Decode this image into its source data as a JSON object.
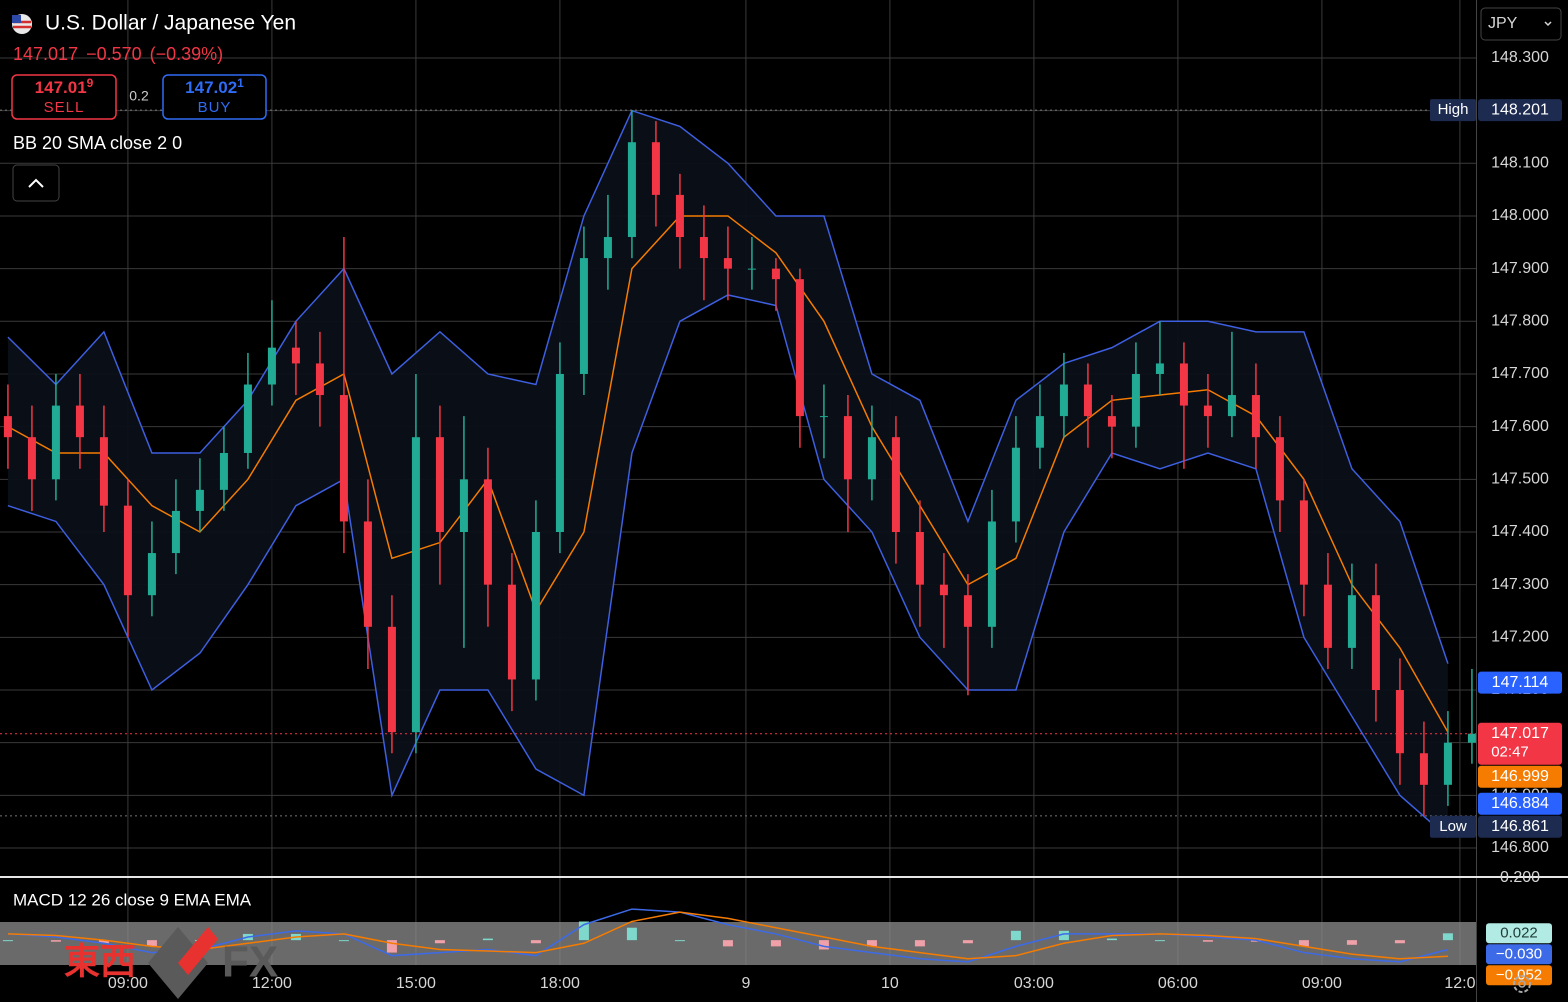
{
  "header": {
    "title": "U.S. Dollar / Japanese Yen",
    "last": "147.017",
    "change": "−0.570",
    "change_pct": "(−0.39%)",
    "sell": {
      "price": "147.01",
      "pip": "9",
      "label": "SELL"
    },
    "spread": "0.2",
    "buy": {
      "price": "147.02",
      "pip": "1",
      "label": "BUY"
    },
    "indicator": "BB 20 SMA close 2 0",
    "currency": "JPY"
  },
  "chart_data": [
    {
      "type": "candlestick",
      "xlim": [
        -0.33,
        61.17
      ],
      "xticks": [
        {
          "value": 5,
          "label": "09:00"
        },
        {
          "value": 11,
          "label": "12:00"
        },
        {
          "value": 17,
          "label": "15:00"
        },
        {
          "value": 23,
          "label": "18:00"
        },
        {
          "value": 30.75,
          "label": "9"
        },
        {
          "value": 36.75,
          "label": "10"
        },
        {
          "value": 42.75,
          "label": "03:00"
        },
        {
          "value": 48.75,
          "label": "06:00"
        },
        {
          "value": 54.75,
          "label": "09:00"
        },
        {
          "value": 60.5,
          "label": "12:0"
        }
      ],
      "ylim": [
        146.745,
        148.41
      ],
      "yticks": [
        {
          "value": 148.3,
          "label": "148.300"
        },
        {
          "value": 148.2,
          "label": "148.200"
        },
        {
          "value": 148.1,
          "label": "148.100"
        },
        {
          "value": 148.0,
          "label": "148.000"
        },
        {
          "value": 147.9,
          "label": "147.900"
        },
        {
          "value": 147.8,
          "label": "147.800"
        },
        {
          "value": 147.7,
          "label": "147.700"
        },
        {
          "value": 147.6,
          "label": "147.600"
        },
        {
          "value": 147.5,
          "label": "147.500"
        },
        {
          "value": 147.4,
          "label": "147.400"
        },
        {
          "value": 147.3,
          "label": "147.300"
        },
        {
          "value": 147.2,
          "label": "147.200"
        },
        {
          "value": 147.1,
          "label": "147.100"
        },
        {
          "value": 147.0,
          "label": "147.000"
        },
        {
          "value": 146.9,
          "label": "146.900"
        },
        {
          "value": 146.8,
          "label": "146.800"
        }
      ],
      "grid": true,
      "up_color": "#22ab94",
      "down_color": "#f23645",
      "open": [
        147.62,
        147.58,
        147.5,
        147.64,
        147.58,
        147.45,
        147.28,
        147.36,
        147.44,
        147.48,
        147.55,
        147.68,
        147.75,
        147.72,
        147.66,
        147.42,
        147.22,
        147.02,
        147.58,
        147.4,
        147.5,
        147.3,
        147.12,
        147.4,
        147.7,
        147.92,
        147.96,
        148.14,
        148.04,
        147.96,
        147.92,
        147.9,
        147.9,
        147.88,
        147.62,
        147.62,
        147.5,
        147.58,
        147.4,
        147.3,
        147.28,
        147.22,
        147.42,
        147.56,
        147.62,
        147.68,
        147.62,
        147.6,
        147.7,
        147.72,
        147.64,
        147.62,
        147.66,
        147.58,
        147.46,
        147.3,
        147.18,
        147.28,
        147.1,
        146.98,
        146.92,
        147.0
      ],
      "high": [
        147.68,
        147.64,
        147.7,
        147.7,
        147.64,
        147.5,
        147.42,
        147.5,
        147.54,
        147.6,
        147.74,
        147.84,
        147.8,
        147.78,
        147.96,
        147.5,
        147.28,
        147.7,
        147.64,
        147.62,
        147.56,
        147.36,
        147.46,
        147.76,
        147.98,
        148.04,
        148.201,
        148.18,
        148.08,
        148.02,
        147.98,
        147.96,
        147.92,
        147.9,
        147.68,
        147.66,
        147.64,
        147.62,
        147.46,
        147.36,
        147.32,
        147.48,
        147.62,
        147.68,
        147.74,
        147.72,
        147.66,
        147.76,
        147.8,
        147.76,
        147.7,
        147.78,
        147.72,
        147.62,
        147.5,
        147.36,
        147.34,
        147.34,
        147.16,
        147.04,
        147.06,
        147.14
      ],
      "low": [
        147.52,
        147.44,
        147.46,
        147.52,
        147.4,
        147.2,
        147.24,
        147.32,
        147.4,
        147.44,
        147.52,
        147.64,
        147.66,
        147.6,
        147.36,
        147.14,
        146.98,
        146.98,
        147.3,
        147.18,
        147.22,
        147.06,
        147.08,
        147.36,
        147.66,
        147.86,
        147.92,
        147.98,
        147.9,
        147.84,
        147.84,
        147.86,
        147.82,
        147.56,
        147.54,
        147.4,
        147.46,
        147.34,
        147.22,
        147.18,
        147.09,
        147.18,
        147.38,
        147.52,
        147.58,
        147.56,
        147.54,
        147.56,
        147.66,
        147.52,
        147.56,
        147.58,
        147.52,
        147.4,
        147.24,
        147.14,
        147.14,
        147.04,
        146.92,
        146.861,
        146.88,
        146.96
      ],
      "close": [
        147.58,
        147.5,
        147.64,
        147.58,
        147.45,
        147.28,
        147.36,
        147.44,
        147.48,
        147.55,
        147.68,
        147.75,
        147.72,
        147.66,
        147.42,
        147.22,
        147.02,
        147.58,
        147.4,
        147.5,
        147.3,
        147.12,
        147.4,
        147.7,
        147.92,
        147.96,
        148.14,
        148.04,
        147.96,
        147.92,
        147.9,
        147.9,
        147.88,
        147.62,
        147.62,
        147.5,
        147.58,
        147.4,
        147.3,
        147.28,
        147.22,
        147.42,
        147.56,
        147.62,
        147.68,
        147.62,
        147.6,
        147.7,
        147.72,
        147.64,
        147.62,
        147.66,
        147.58,
        147.46,
        147.3,
        147.18,
        147.28,
        147.1,
        146.98,
        146.92,
        147.0,
        147.017
      ],
      "bands": {
        "band_color": "#3d5fe0",
        "middle_color": "#f57c00",
        "fill": "#0b0f17",
        "x": [
          0,
          2,
          4,
          6,
          8,
          10,
          12,
          14,
          16,
          18,
          20,
          22,
          24,
          26,
          28,
          30,
          32,
          34,
          36,
          38,
          40,
          42,
          44,
          46,
          48,
          50,
          52,
          54,
          56,
          58,
          60
        ],
        "upper": [
          147.77,
          147.68,
          147.78,
          147.55,
          147.55,
          147.65,
          147.8,
          147.9,
          147.7,
          147.78,
          147.7,
          147.68,
          148.0,
          148.2,
          148.17,
          148.1,
          148.0,
          148.0,
          147.7,
          147.65,
          147.42,
          147.65,
          147.72,
          147.75,
          147.8,
          147.8,
          147.78,
          147.78,
          147.52,
          147.42,
          147.15
        ],
        "middle": [
          147.6,
          147.55,
          147.55,
          147.45,
          147.4,
          147.5,
          147.65,
          147.7,
          147.35,
          147.38,
          147.5,
          147.25,
          147.4,
          147.9,
          148.0,
          148.0,
          147.93,
          147.8,
          147.6,
          147.45,
          147.3,
          147.35,
          147.58,
          147.65,
          147.66,
          147.67,
          147.62,
          147.5,
          147.3,
          147.18,
          147.02
        ],
        "lower": [
          147.45,
          147.42,
          147.3,
          147.1,
          147.17,
          147.3,
          147.45,
          147.5,
          146.9,
          147.1,
          147.1,
          146.95,
          146.9,
          147.55,
          147.8,
          147.85,
          147.83,
          147.5,
          147.4,
          147.2,
          147.1,
          147.1,
          147.4,
          147.55,
          147.52,
          147.55,
          147.52,
          147.2,
          147.05,
          146.9,
          146.82
        ]
      },
      "markers": [
        {
          "label": "High",
          "value": 148.201,
          "value_label": "148.201",
          "color": "#1c2b4f",
          "dotted": "#777777"
        },
        {
          "value": 147.114,
          "value_label": "147.114",
          "color": "#2962ff"
        },
        {
          "value": 147.017,
          "value_label": "147.017",
          "countdown": "02:47",
          "color": "#f23645",
          "dotted": "#f23645"
        },
        {
          "value": 146.999,
          "value_label": "146.999",
          "color": "#f57c00"
        },
        {
          "value": 146.884,
          "value_label": "146.884",
          "color": "#2962ff"
        },
        {
          "label": "Low",
          "value": 146.861,
          "value_label": "146.861",
          "color": "#1c2b4f",
          "dotted": "#777777"
        }
      ]
    },
    {
      "type": "macd",
      "title": "MACD 12 26 close 9 EMA EMA",
      "ylim": [
        -0.08,
        0.2
      ],
      "yticks": [
        {
          "value": 0.2,
          "label": "0.200"
        }
      ],
      "x": [
        0,
        2,
        4,
        6,
        8,
        10,
        12,
        14,
        16,
        18,
        20,
        22,
        24,
        26,
        28,
        30,
        32,
        34,
        36,
        38,
        40,
        42,
        44,
        46,
        48,
        50,
        52,
        54,
        56,
        58,
        60
      ],
      "macd": [
        0.02,
        0.01,
        -0.01,
        -0.04,
        -0.03,
        0.01,
        0.03,
        0.02,
        -0.05,
        -0.04,
        -0.03,
        -0.05,
        0.05,
        0.1,
        0.09,
        0.05,
        0.02,
        -0.02,
        -0.04,
        -0.06,
        -0.07,
        -0.02,
        0.02,
        0.02,
        0.02,
        0.01,
        0.0,
        -0.04,
        -0.06,
        -0.07,
        -0.03
      ],
      "signal": [
        0.02,
        0.015,
        0.0,
        -0.02,
        -0.03,
        -0.01,
        0.01,
        0.02,
        -0.01,
        -0.03,
        -0.035,
        -0.04,
        -0.01,
        0.06,
        0.09,
        0.07,
        0.04,
        0.01,
        -0.02,
        -0.04,
        -0.06,
        -0.05,
        -0.01,
        0.015,
        0.02,
        0.015,
        0.005,
        -0.02,
        -0.045,
        -0.06,
        -0.052
      ],
      "histogram": [
        0,
        -0.005,
        -0.01,
        -0.02,
        0,
        0.02,
        0.02,
        0,
        -0.04,
        -0.01,
        0.005,
        -0.01,
        0.06,
        0.04,
        0,
        -0.02,
        -0.02,
        -0.03,
        -0.02,
        -0.02,
        -0.01,
        0.03,
        0.03,
        0.005,
        0,
        -0.005,
        -0.005,
        -0.02,
        -0.015,
        -0.01,
        0.022
      ],
      "macd_color": "#3d6be8",
      "signal_color": "#f57c00",
      "pos_color": "#7fd8cc",
      "neg_color": "#f0a0a8",
      "markers": [
        {
          "value": 0.022,
          "value_label": "0.022",
          "color": "#b2ebe4",
          "text": "#1f3b37"
        },
        {
          "value": -0.03,
          "value_label": "−0.030",
          "color": "#3d6be8",
          "text": "#ffffff"
        },
        {
          "value": -0.052,
          "value_label": "−0.052",
          "color": "#f57c00",
          "text": "#ffffff"
        }
      ]
    }
  ],
  "watermark": {
    "cjk": "東西",
    "latin": "FX"
  }
}
